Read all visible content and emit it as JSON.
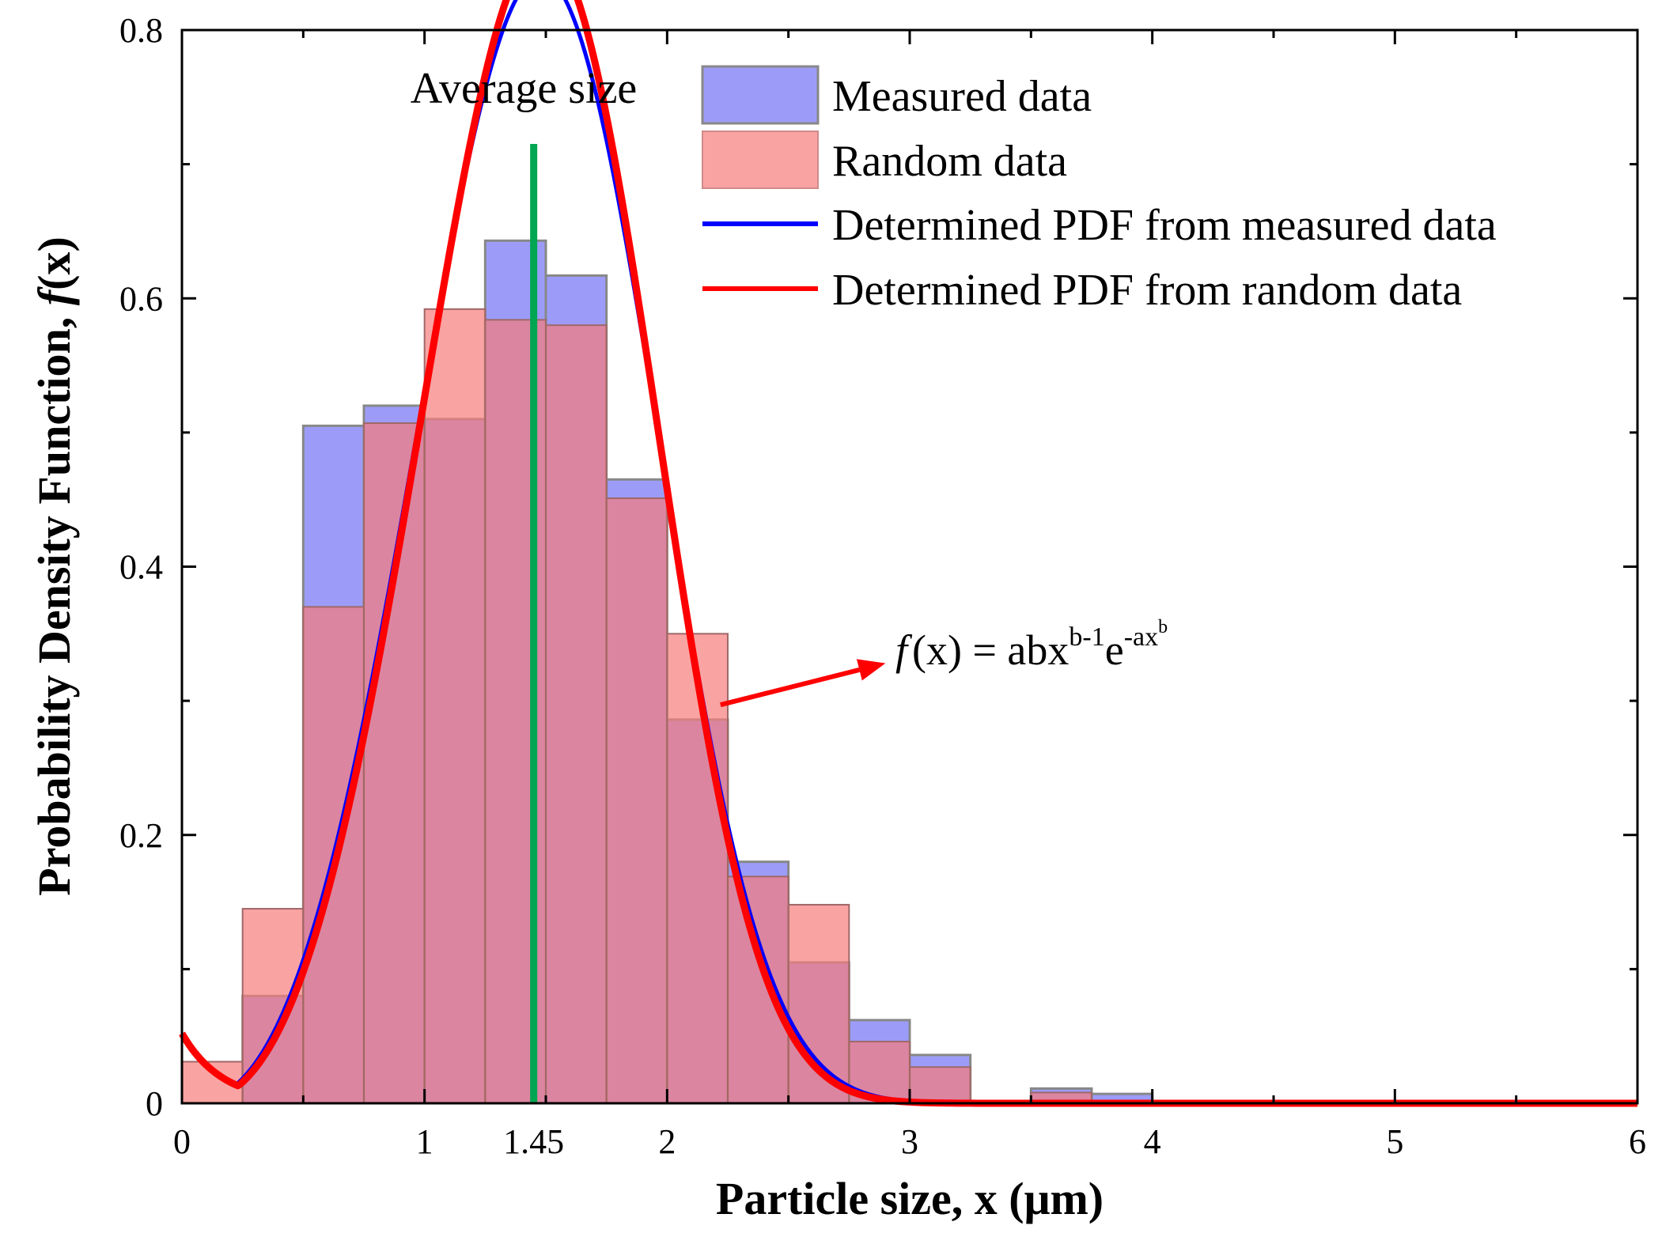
{
  "chart_data": {
    "type": "bar",
    "title": "",
    "xlabel": "Particle size, x (μm)",
    "ylabel_prefix": "Probability Density Function, ",
    "ylabel_f": "f",
    "ylabel_suffix": "(x)",
    "xlim": [
      0,
      6
    ],
    "ylim": [
      0,
      0.8
    ],
    "xticks": [
      0,
      1,
      1.45,
      2,
      3,
      4,
      5,
      6
    ],
    "xtick_labels": [
      "0",
      "1",
      "1.45",
      "2",
      "3",
      "4",
      "5",
      "6"
    ],
    "yticks": [
      0,
      0.2,
      0.4,
      0.6,
      0.8
    ],
    "ytick_labels": [
      "0",
      "0.2",
      "0.4",
      "0.6",
      "0.8"
    ],
    "bin_width": 0.25,
    "bin_starts": [
      0,
      0.25,
      0.5,
      0.75,
      1.0,
      1.25,
      1.5,
      1.75,
      2.0,
      2.25,
      2.5,
      2.75,
      3.0,
      3.25,
      3.5,
      3.75
    ],
    "series": [
      {
        "name": "Measured data",
        "kind": "histogram",
        "color": "#7b7bf5",
        "values": [
          0,
          0.08,
          0.505,
          0.52,
          0.51,
          0.643,
          0.617,
          0.465,
          0.286,
          0.18,
          0.105,
          0.062,
          0.036,
          0.0,
          0.011,
          0.007
        ]
      },
      {
        "name": "Random data",
        "kind": "histogram",
        "color": "#f67c7c",
        "values": [
          0.031,
          0.145,
          0.37,
          0.507,
          0.592,
          0.584,
          0.58,
          0.451,
          0.35,
          0.169,
          0.148,
          0.046,
          0.027,
          0.0,
          0.008,
          0.0
        ]
      },
      {
        "name": "Determined PDF from measured data",
        "kind": "weibull-curve",
        "color": "#0000ff",
        "a": 0.179,
        "b": 3.55
      },
      {
        "name": "Determined PDF from random data",
        "kind": "weibull-curve",
        "color": "#ff0000",
        "a": 0.171,
        "b": 3.65
      }
    ],
    "average_line": {
      "x": 1.45,
      "label": "Average size",
      "color": "#00a651"
    },
    "annotation": {
      "f": "f",
      "base": "(x) = abx",
      "sup1": "b-1",
      "e": "e",
      "sup2": "-ax",
      "sup3": "b",
      "arrow_color": "#ff0000",
      "arrow_from": [
        2.22,
        0.297
      ],
      "arrow_to": [
        2.9,
        0.328
      ]
    },
    "legend_position": "top-right",
    "grid": false
  }
}
